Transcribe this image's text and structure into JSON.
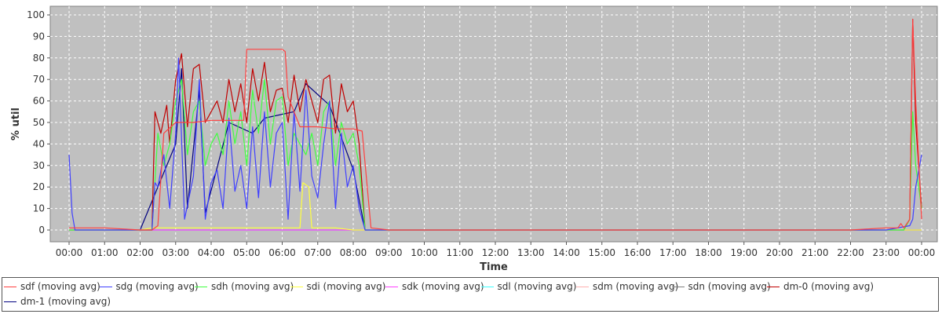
{
  "chart_data": {
    "type": "line",
    "xlabel": "Time",
    "ylabel": "% util",
    "ylim": [
      0,
      100
    ],
    "xlim": [
      "00:00",
      "24:00"
    ],
    "grid": true,
    "legend_position": "bottom",
    "background": "#c0c0c0",
    "x_ticks": [
      "00:00",
      "01:00",
      "02:00",
      "03:00",
      "04:00",
      "05:00",
      "06:00",
      "07:00",
      "08:00",
      "09:00",
      "10:00",
      "11:00",
      "12:00",
      "13:00",
      "14:00",
      "15:00",
      "16:00",
      "17:00",
      "18:00",
      "19:00",
      "20:00",
      "21:00",
      "22:00",
      "23:00",
      "00:00"
    ],
    "y_ticks": [
      "0",
      "10",
      "20",
      "30",
      "40",
      "50",
      "60",
      "70",
      "80",
      "90",
      "100"
    ],
    "series": [
      {
        "name": "sdf (moving avg)",
        "color": "#ff4040",
        "points": [
          [
            "00:00",
            1
          ],
          [
            "00:30",
            1
          ],
          [
            "01:00",
            1
          ],
          [
            "02:00",
            0
          ],
          [
            "02:20",
            0
          ],
          [
            "02:30",
            2
          ],
          [
            "02:40",
            45
          ],
          [
            "03:00",
            50
          ],
          [
            "03:30",
            50
          ],
          [
            "04:00",
            51
          ],
          [
            "04:30",
            51
          ],
          [
            "04:55",
            51
          ],
          [
            "05:00",
            84
          ],
          [
            "05:30",
            84
          ],
          [
            "06:00",
            84
          ],
          [
            "06:05",
            83
          ],
          [
            "06:10",
            62
          ],
          [
            "06:30",
            48
          ],
          [
            "07:00",
            48
          ],
          [
            "07:30",
            47
          ],
          [
            "08:00",
            47
          ],
          [
            "08:15",
            46
          ],
          [
            "08:30",
            1
          ],
          [
            "09:00",
            0
          ],
          [
            "12:00",
            0
          ],
          [
            "16:00",
            0
          ],
          [
            "20:00",
            0
          ],
          [
            "22:00",
            0
          ],
          [
            "23:00",
            1
          ],
          [
            "23:20",
            1
          ],
          [
            "23:25",
            3
          ],
          [
            "23:30",
            1
          ],
          [
            "23:40",
            5
          ],
          [
            "23:45",
            98
          ],
          [
            "23:50",
            60
          ],
          [
            "24:00",
            5
          ]
        ]
      },
      {
        "name": "sdg (moving avg)",
        "color": "#4040ff",
        "points": [
          [
            "00:00",
            35
          ],
          [
            "00:05",
            8
          ],
          [
            "00:10",
            0
          ],
          [
            "01:00",
            0
          ],
          [
            "02:00",
            0
          ],
          [
            "02:20",
            0
          ],
          [
            "02:25",
            22
          ],
          [
            "02:30",
            20
          ],
          [
            "02:40",
            35
          ],
          [
            "02:50",
            10
          ],
          [
            "03:00",
            45
          ],
          [
            "03:05",
            80
          ],
          [
            "03:15",
            5
          ],
          [
            "03:30",
            25
          ],
          [
            "03:40",
            70
          ],
          [
            "03:50",
            5
          ],
          [
            "04:00",
            22
          ],
          [
            "04:10",
            28
          ],
          [
            "04:20",
            10
          ],
          [
            "04:30",
            52
          ],
          [
            "04:40",
            18
          ],
          [
            "04:50",
            30
          ],
          [
            "05:00",
            10
          ],
          [
            "05:10",
            48
          ],
          [
            "05:20",
            15
          ],
          [
            "05:30",
            55
          ],
          [
            "05:40",
            20
          ],
          [
            "05:50",
            45
          ],
          [
            "06:00",
            50
          ],
          [
            "06:10",
            5
          ],
          [
            "06:20",
            55
          ],
          [
            "06:30",
            18
          ],
          [
            "06:40",
            65
          ],
          [
            "06:50",
            25
          ],
          [
            "07:00",
            15
          ],
          [
            "07:10",
            40
          ],
          [
            "07:20",
            60
          ],
          [
            "07:30",
            10
          ],
          [
            "07:40",
            45
          ],
          [
            "07:50",
            20
          ],
          [
            "08:00",
            30
          ],
          [
            "08:10",
            10
          ],
          [
            "08:20",
            0
          ],
          [
            "09:00",
            0
          ],
          [
            "16:00",
            0
          ],
          [
            "22:00",
            0
          ],
          [
            "23:00",
            0
          ],
          [
            "23:40",
            2
          ],
          [
            "23:45",
            5
          ],
          [
            "23:50",
            20
          ],
          [
            "24:00",
            35
          ]
        ]
      },
      {
        "name": "sdh (moving avg)",
        "color": "#40ff40",
        "points": [
          [
            "00:00",
            0
          ],
          [
            "02:00",
            0
          ],
          [
            "02:20",
            0
          ],
          [
            "02:30",
            45
          ],
          [
            "02:40",
            30
          ],
          [
            "02:50",
            40
          ],
          [
            "03:00",
            60
          ],
          [
            "03:10",
            70
          ],
          [
            "03:20",
            35
          ],
          [
            "03:30",
            55
          ],
          [
            "03:40",
            60
          ],
          [
            "03:50",
            30
          ],
          [
            "04:00",
            40
          ],
          [
            "04:10",
            45
          ],
          [
            "04:20",
            35
          ],
          [
            "04:30",
            60
          ],
          [
            "04:40",
            40
          ],
          [
            "04:50",
            55
          ],
          [
            "05:00",
            30
          ],
          [
            "05:10",
            65
          ],
          [
            "05:20",
            45
          ],
          [
            "05:30",
            70
          ],
          [
            "05:40",
            40
          ],
          [
            "05:50",
            60
          ],
          [
            "06:00",
            62
          ],
          [
            "06:10",
            30
          ],
          [
            "06:20",
            45
          ],
          [
            "06:30",
            40
          ],
          [
            "06:40",
            35
          ],
          [
            "06:50",
            45
          ],
          [
            "07:00",
            30
          ],
          [
            "07:10",
            55
          ],
          [
            "07:20",
            60
          ],
          [
            "07:30",
            30
          ],
          [
            "07:40",
            50
          ],
          [
            "07:50",
            40
          ],
          [
            "08:00",
            45
          ],
          [
            "08:10",
            30
          ],
          [
            "08:20",
            0
          ],
          [
            "09:00",
            0
          ],
          [
            "22:00",
            0
          ],
          [
            "23:30",
            0
          ],
          [
            "23:40",
            5
          ],
          [
            "23:45",
            55
          ],
          [
            "23:50",
            30
          ],
          [
            "24:00",
            10
          ]
        ]
      },
      {
        "name": "sdi (moving avg)",
        "color": "#ffff40",
        "points": [
          [
            "00:00",
            0
          ],
          [
            "02:00",
            0
          ],
          [
            "02:20",
            1
          ],
          [
            "03:00",
            1
          ],
          [
            "04:00",
            1
          ],
          [
            "05:00",
            1
          ],
          [
            "06:00",
            1
          ],
          [
            "06:30",
            1
          ],
          [
            "06:35",
            22
          ],
          [
            "06:45",
            20
          ],
          [
            "06:50",
            1
          ],
          [
            "07:30",
            1
          ],
          [
            "08:00",
            0
          ],
          [
            "09:00",
            0
          ],
          [
            "24:00",
            0
          ]
        ]
      },
      {
        "name": "sdk (moving avg)",
        "color": "#ff40ff",
        "points": [
          [
            "00:00",
            0
          ],
          [
            "08:30",
            0
          ],
          [
            "09:00",
            0
          ],
          [
            "24:00",
            0
          ]
        ]
      },
      {
        "name": "sdl (moving avg)",
        "color": "#40ffff",
        "points": [
          [
            "00:00",
            0
          ],
          [
            "24:00",
            0
          ]
        ]
      },
      {
        "name": "sdm (moving avg)",
        "color": "#ffafaf",
        "points": [
          [
            "00:00",
            0
          ],
          [
            "24:00",
            0
          ]
        ]
      },
      {
        "name": "sdn (moving avg)",
        "color": "#808080",
        "points": [
          [
            "00:00",
            0
          ],
          [
            "24:00",
            0
          ]
        ]
      },
      {
        "name": "dm-0 (moving avg)",
        "color": "#c00000",
        "points": [
          [
            "00:00",
            0
          ],
          [
            "02:00",
            0
          ],
          [
            "02:20",
            0
          ],
          [
            "02:25",
            55
          ],
          [
            "02:35",
            45
          ],
          [
            "02:45",
            58
          ],
          [
            "02:50",
            40
          ],
          [
            "03:00",
            70
          ],
          [
            "03:10",
            82
          ],
          [
            "03:20",
            48
          ],
          [
            "03:30",
            75
          ],
          [
            "03:40",
            77
          ],
          [
            "03:50",
            50
          ],
          [
            "04:00",
            55
          ],
          [
            "04:10",
            60
          ],
          [
            "04:20",
            50
          ],
          [
            "04:30",
            70
          ],
          [
            "04:40",
            55
          ],
          [
            "04:50",
            68
          ],
          [
            "05:00",
            50
          ],
          [
            "05:10",
            75
          ],
          [
            "05:20",
            60
          ],
          [
            "05:30",
            78
          ],
          [
            "05:40",
            55
          ],
          [
            "05:50",
            65
          ],
          [
            "06:00",
            66
          ],
          [
            "06:10",
            50
          ],
          [
            "06:20",
            72
          ],
          [
            "06:30",
            55
          ],
          [
            "06:40",
            70
          ],
          [
            "06:50",
            60
          ],
          [
            "07:00",
            50
          ],
          [
            "07:10",
            70
          ],
          [
            "07:20",
            72
          ],
          [
            "07:30",
            45
          ],
          [
            "07:40",
            68
          ],
          [
            "07:50",
            55
          ],
          [
            "08:00",
            60
          ],
          [
            "08:10",
            40
          ],
          [
            "08:20",
            0
          ],
          [
            "09:00",
            0
          ],
          [
            "22:00",
            0
          ],
          [
            "23:30",
            0
          ],
          [
            "23:40",
            5
          ],
          [
            "23:45",
            98
          ],
          [
            "23:50",
            50
          ],
          [
            "24:00",
            10
          ]
        ]
      },
      {
        "name": "dm-1 (moving avg)",
        "color": "#000080",
        "points": [
          [
            "00:00",
            0
          ],
          [
            "02:00",
            0
          ],
          [
            "02:30",
            20
          ],
          [
            "03:00",
            40
          ],
          [
            "03:10",
            75
          ],
          [
            "03:20",
            10
          ],
          [
            "03:40",
            65
          ],
          [
            "03:50",
            8
          ],
          [
            "04:30",
            50
          ],
          [
            "05:10",
            45
          ],
          [
            "05:30",
            52
          ],
          [
            "06:20",
            55
          ],
          [
            "06:40",
            68
          ],
          [
            "07:20",
            58
          ],
          [
            "08:00",
            28
          ],
          [
            "08:20",
            0
          ],
          [
            "24:00",
            0
          ]
        ]
      }
    ]
  }
}
